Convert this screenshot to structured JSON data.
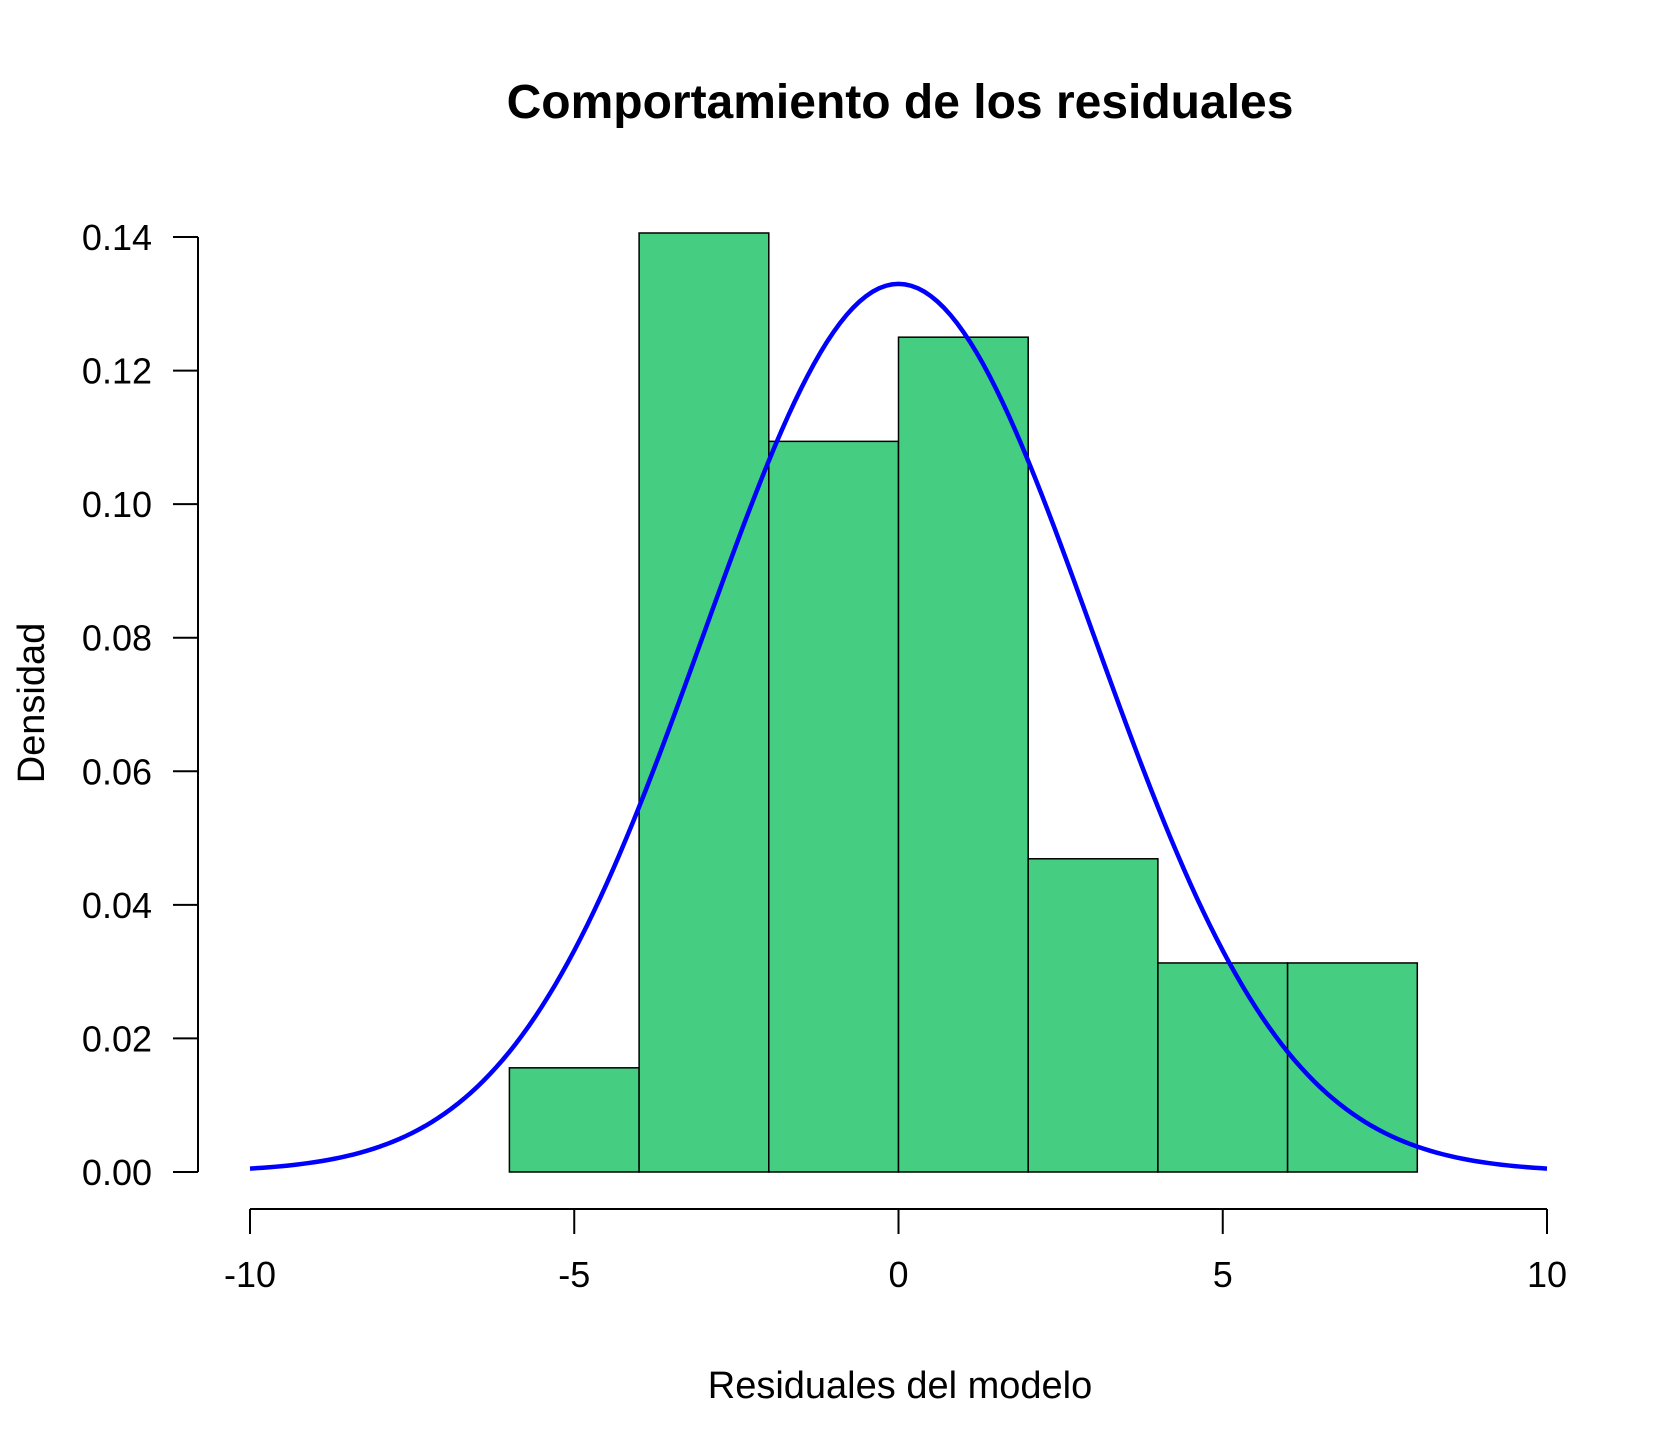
{
  "chart_data": {
    "type": "histogram",
    "title": "Comportamiento de los residuales",
    "xlabel": "Residuales del modelo",
    "ylabel": "Densidad",
    "xlim": [
      -10,
      10
    ],
    "ylim": [
      0,
      0.14
    ],
    "x_ticks": [
      "-10",
      "-5",
      "0",
      "5",
      "10"
    ],
    "y_ticks": [
      "0.00",
      "0.02",
      "0.04",
      "0.06",
      "0.08",
      "0.10",
      "0.12",
      "0.14"
    ],
    "bins": [
      {
        "start": -6,
        "end": -4,
        "density": 0.0156
      },
      {
        "start": -4,
        "end": -2,
        "density": 0.1406
      },
      {
        "start": -2,
        "end": 0,
        "density": 0.1094
      },
      {
        "start": 0,
        "end": 2,
        "density": 0.125
      },
      {
        "start": 2,
        "end": 4,
        "density": 0.0469
      },
      {
        "start": 4,
        "end": 6,
        "density": 0.0313
      },
      {
        "start": 6,
        "end": 8,
        "density": 0.0313
      }
    ],
    "density_curve": {
      "distribution": "normal",
      "mean": 0,
      "sd": 3.0,
      "x_range": [
        -10,
        10
      ]
    },
    "grid": false,
    "legend": "none",
    "colors": {
      "bar_fill": "#45CE82",
      "bar_stroke": "#000000",
      "curve": "#0000FF"
    }
  }
}
